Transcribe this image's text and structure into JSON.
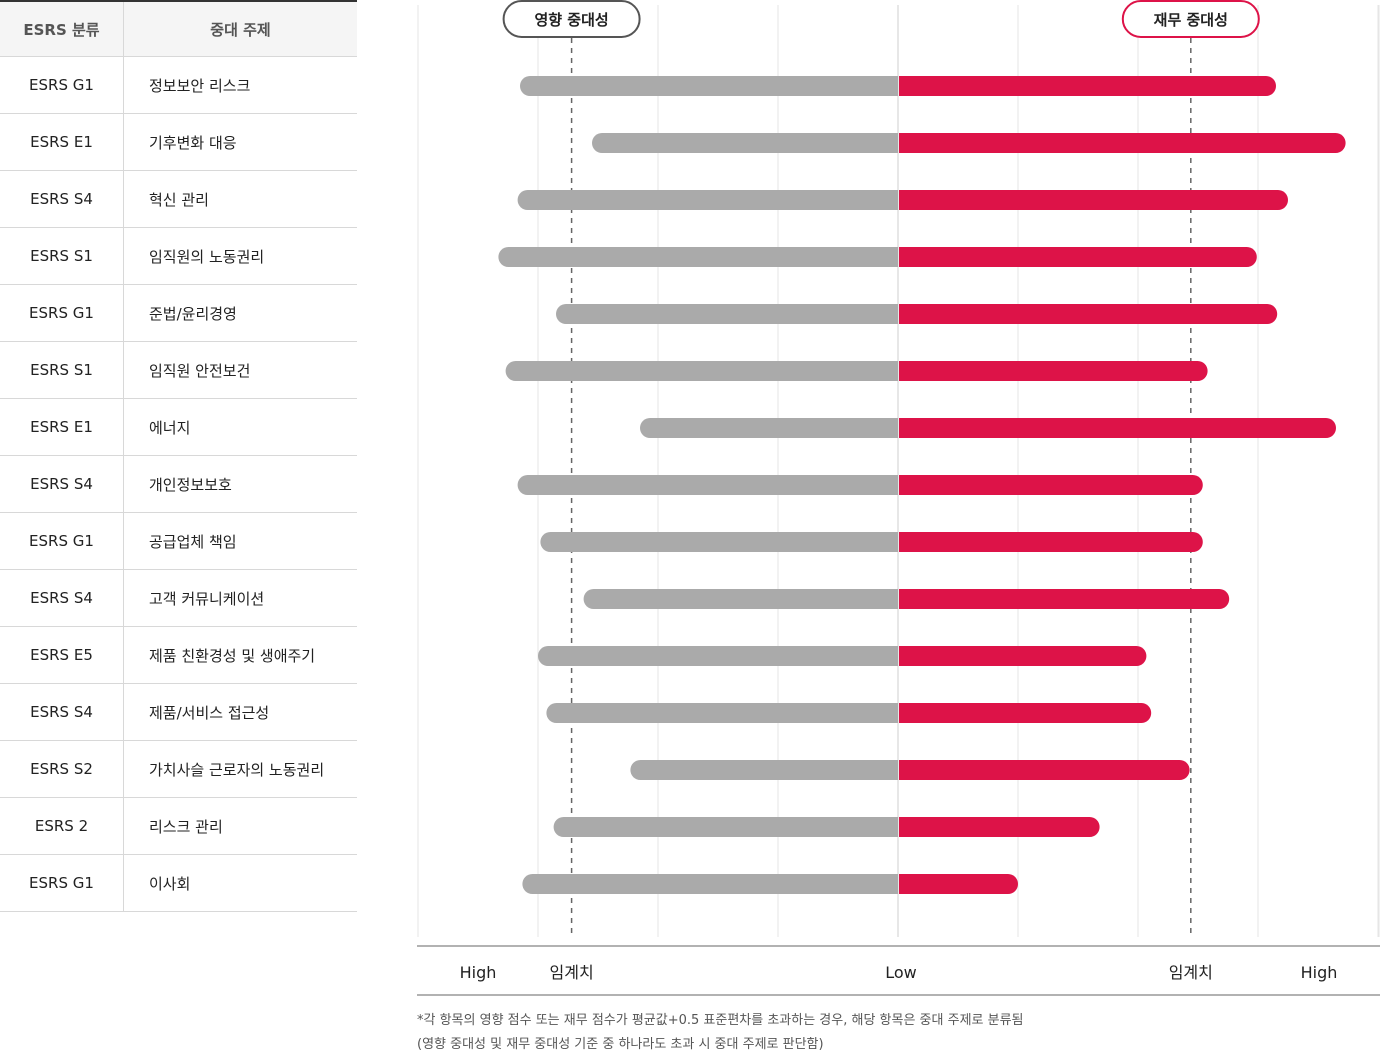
{
  "table": {
    "header": {
      "col1": "ESRS 분류",
      "col2": "중대 주제"
    },
    "rows": [
      {
        "esrs": "ESRS G1",
        "topic": "정보보안 리스크"
      },
      {
        "esrs": "ESRS E1",
        "topic": "기후변화 대응"
      },
      {
        "esrs": "ESRS S4",
        "topic": "혁신 관리"
      },
      {
        "esrs": "ESRS S1",
        "topic": "임직원의 노동권리"
      },
      {
        "esrs": "ESRS G1",
        "topic": "준법/윤리경영"
      },
      {
        "esrs": "ESRS S1",
        "topic": "임직원 안전보건"
      },
      {
        "esrs": "ESRS E1",
        "topic": "에너지"
      },
      {
        "esrs": "ESRS S4",
        "topic": "개인정보보호"
      },
      {
        "esrs": "ESRS G1",
        "topic": "공급업체 책임"
      },
      {
        "esrs": "ESRS S4",
        "topic": "고객 커뮤니케이션"
      },
      {
        "esrs": "ESRS E5",
        "topic": "제품 친환경성 및 생애주기"
      },
      {
        "esrs": "ESRS S4",
        "topic": "제품/서비스 접근성"
      },
      {
        "esrs": "ESRS S2",
        "topic": "가치사슬 근로자의 노동권리"
      },
      {
        "esrs": "ESRS 2",
        "topic": "리스크 관리"
      },
      {
        "esrs": "ESRS G1",
        "topic": "이사회"
      }
    ]
  },
  "chart_data": {
    "type": "bar",
    "categories": [
      "정보보안 리스크",
      "기후변화 대응",
      "혁신 관리",
      "임직원의 노동권리",
      "준법/윤리경영",
      "임직원 안전보건",
      "에너지",
      "개인정보보호",
      "공급업체 책임",
      "고객 커뮤니케이션",
      "제품 친환경성 및 생애주기",
      "제품/서비스 접근성",
      "가치사슬 근로자의 노동권리",
      "리스크 관리",
      "이사회"
    ],
    "series": [
      {
        "name": "영향 중대성",
        "color": "#aaaaaa",
        "values": [
          3.15,
          2.55,
          3.17,
          3.33,
          2.85,
          3.27,
          2.15,
          3.17,
          2.98,
          2.62,
          3.0,
          2.93,
          2.23,
          2.87,
          3.13
        ]
      },
      {
        "name": "재무 중대성",
        "color": "#dd1348",
        "values": [
          3.15,
          3.73,
          3.25,
          2.99,
          3.16,
          2.58,
          3.65,
          2.54,
          2.54,
          2.76,
          2.07,
          2.11,
          2.43,
          1.68,
          1.0
        ]
      }
    ],
    "impact_threshold": 2.72,
    "financial_threshold": 2.44,
    "xlim": [
      0,
      4
    ],
    "axis_labels": {
      "left_high": "High",
      "left_threshold": "임계치",
      "center": "Low",
      "right_threshold": "임계치",
      "right_high": "High"
    },
    "grid": true
  },
  "footnote": {
    "line1": "*각 항목의 영향 점수 또는 재무 점수가 평균값+0.5 표준편차를 초과하는 경우, 해당 항목은 중대 주제로 분류됨",
    "line2": "(영향 중대성 및 재무 중대성 기준 중 하나라도 초과 시 중대 주제로 판단함)"
  }
}
